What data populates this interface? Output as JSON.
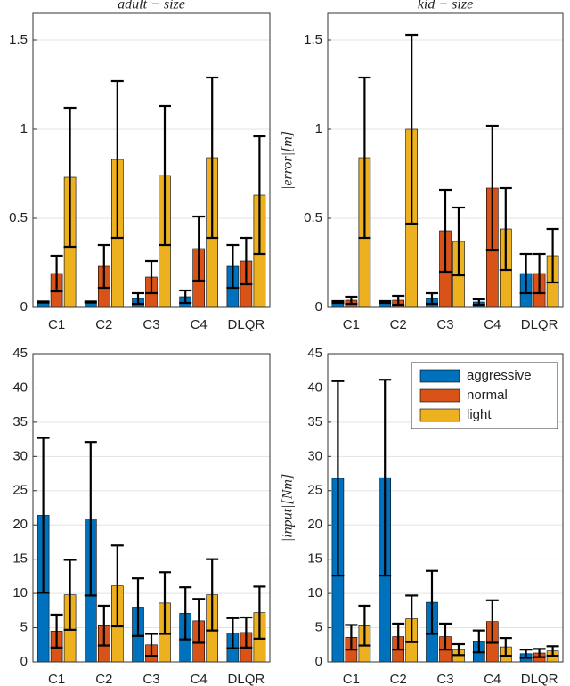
{
  "chart_data": [
    {
      "type": "bar",
      "title": "adult − size",
      "categories": [
        "C1",
        "C2",
        "C3",
        "C4",
        "DLQR"
      ],
      "ylim": [
        0,
        1.65
      ],
      "yticks": [
        0,
        0.5,
        1,
        1.5
      ],
      "grid": true,
      "series": [
        {
          "color": "#0072BD",
          "values": [
            0.03,
            0.03,
            0.05,
            0.06,
            0.23
          ],
          "errors": [
            0.003,
            0.003,
            0.03,
            0.035,
            0.12
          ]
        },
        {
          "color": "#D95319",
          "values": [
            0.19,
            0.23,
            0.17,
            0.33,
            0.26
          ],
          "errors": [
            0.1,
            0.12,
            0.09,
            0.18,
            0.13
          ]
        },
        {
          "color": "#EDB120",
          "values": [
            0.73,
            0.83,
            0.74,
            0.84,
            0.63
          ],
          "errors": [
            0.39,
            0.44,
            0.39,
            0.45,
            0.33
          ]
        }
      ]
    },
    {
      "type": "bar",
      "title": "kid − size",
      "ylabel": "|error|[m]",
      "categories": [
        "C1",
        "C2",
        "C3",
        "C4",
        "DLQR"
      ],
      "ylim": [
        0,
        1.65
      ],
      "yticks": [
        0,
        0.5,
        1,
        1.5
      ],
      "grid": true,
      "series": [
        {
          "color": "#0072BD",
          "values": [
            0.03,
            0.03,
            0.05,
            0.03,
            0.19
          ],
          "errors": [
            0.005,
            0.005,
            0.03,
            0.015,
            0.11
          ]
        },
        {
          "color": "#D95319",
          "values": [
            0.04,
            0.04,
            0.43,
            0.67,
            0.19
          ],
          "errors": [
            0.02,
            0.025,
            0.23,
            0.35,
            0.11
          ]
        },
        {
          "color": "#EDB120",
          "values": [
            0.84,
            1.0,
            0.37,
            0.44,
            0.29
          ],
          "errors": [
            0.45,
            0.53,
            0.19,
            0.23,
            0.15
          ]
        }
      ]
    },
    {
      "type": "bar",
      "categories": [
        "C1",
        "C2",
        "C3",
        "C4",
        "DLQR"
      ],
      "ylim": [
        0,
        45
      ],
      "yticks": [
        0,
        5,
        10,
        15,
        20,
        25,
        30,
        35,
        40,
        45
      ],
      "grid": true,
      "series": [
        {
          "color": "#0072BD",
          "values": [
            21.4,
            20.9,
            8.0,
            7.1,
            4.2
          ],
          "errors": [
            11.3,
            11.2,
            4.2,
            3.8,
            2.2
          ]
        },
        {
          "color": "#D95319",
          "values": [
            4.5,
            5.3,
            2.5,
            6.0,
            4.3
          ],
          "errors": [
            2.4,
            2.9,
            1.6,
            3.2,
            2.2
          ]
        },
        {
          "color": "#EDB120",
          "values": [
            9.8,
            11.1,
            8.6,
            9.8,
            7.2
          ],
          "errors": [
            5.1,
            5.9,
            4.5,
            5.2,
            3.8
          ]
        }
      ]
    },
    {
      "type": "bar",
      "ylabel": "|input|[Nm]",
      "categories": [
        "C1",
        "C2",
        "C3",
        "C4",
        "DLQR"
      ],
      "ylim": [
        0,
        45
      ],
      "yticks": [
        0,
        5,
        10,
        15,
        20,
        25,
        30,
        35,
        40,
        45
      ],
      "grid": true,
      "legend": "northeast",
      "series": [
        {
          "name": "aggressive",
          "color": "#0072BD",
          "values": [
            26.8,
            26.9,
            8.7,
            3.0,
            1.2
          ],
          "errors": [
            14.2,
            14.3,
            4.6,
            1.6,
            0.6
          ]
        },
        {
          "name": "normal",
          "color": "#D95319",
          "values": [
            3.6,
            3.7,
            3.7,
            5.9,
            1.3
          ],
          "errors": [
            1.8,
            1.9,
            1.9,
            3.1,
            0.6
          ]
        },
        {
          "name": "light",
          "color": "#EDB120",
          "values": [
            5.3,
            6.3,
            1.8,
            2.2,
            1.6
          ],
          "errors": [
            2.9,
            3.4,
            0.8,
            1.3,
            0.7
          ]
        }
      ]
    }
  ]
}
